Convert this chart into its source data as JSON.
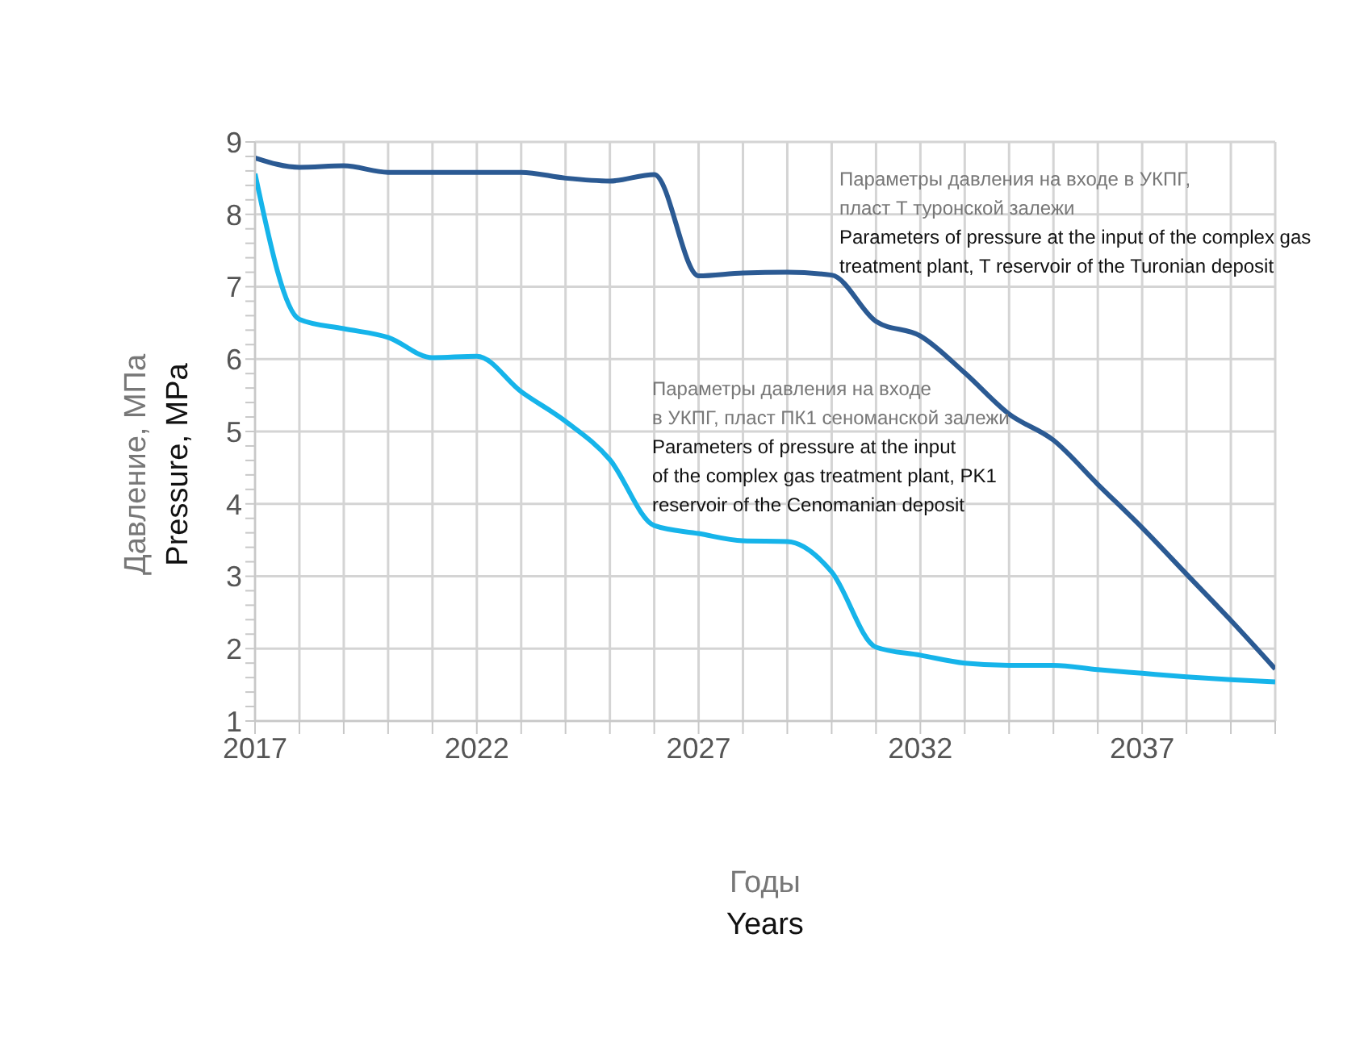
{
  "chart_data": {
    "type": "line",
    "xlabel": "Годы\nYears",
    "ylabel": "Давление, МПа\nPressure, МPa",
    "x": [
      2017,
      2018,
      2019,
      2020,
      2021,
      2022,
      2023,
      2024,
      2025,
      2026,
      2027,
      2028,
      2029,
      2030,
      2031,
      2032,
      2033,
      2034,
      2035,
      2036,
      2037,
      2038,
      2039,
      2040
    ],
    "series": [
      {
        "name": "Parameters of pressure at the input of the complex gas\ntreatment plant, T reservoir of the Turonian deposit",
        "color": "#2b5a93",
        "values": [
          8.78,
          8.65,
          8.67,
          8.58,
          8.58,
          8.58,
          8.58,
          8.5,
          8.46,
          8.55,
          7.15,
          7.19,
          7.2,
          7.16,
          6.52,
          6.32,
          5.81,
          5.24,
          4.88,
          4.27,
          3.67,
          3.03,
          2.39,
          1.72
        ]
      },
      {
        "name": "Parameters of pressure at the input\nof the complex gas treatment plant, PK1\nreservoir of the Cenomanian deposit",
        "color": "#16b4ea",
        "values": [
          8.56,
          6.55,
          6.42,
          6.3,
          6.02,
          6.04,
          5.55,
          5.14,
          4.61,
          3.7,
          3.59,
          3.49,
          3.48,
          3.06,
          2.02,
          1.91,
          1.8,
          1.77,
          1.77,
          1.71,
          1.66,
          1.61,
          1.57,
          1.54
        ]
      }
    ],
    "annotations": [
      "Параметры давления на входе в УКПГ,\nпласт Т туронской залежи",
      "Параметры давления на входе\nв УКПГ, пласт ПК1 сеноманской залежи"
    ],
    "xlim": [
      2017,
      2040
    ],
    "xticks": [
      2017,
      {
        "value": 2018,
        "label": null
      },
      {
        "value": 2019,
        "label": null
      },
      {
        "value": 2020,
        "label": null
      },
      {
        "value": 2021,
        "label": null
      },
      2022,
      {
        "value": 2023,
        "label": null
      },
      {
        "value": 2024,
        "label": null
      },
      {
        "value": 2025,
        "label": null
      },
      {
        "value": 2026,
        "label": null
      },
      2027,
      {
        "value": 2028,
        "label": null
      },
      {
        "value": 2029,
        "label": null
      },
      {
        "value": 2030,
        "label": null
      },
      {
        "value": 2031,
        "label": null
      },
      2032,
      {
        "value": 2033,
        "label": null
      },
      {
        "value": 2034,
        "label": null
      },
      {
        "value": 2035,
        "label": null
      },
      {
        "value": 2036,
        "label": null
      },
      2037,
      {
        "value": 2038,
        "label": null
      },
      {
        "value": 2039,
        "label": null
      },
      {
        "value": 2040,
        "label": null
      }
    ],
    "ylim": [
      1,
      9
    ],
    "yticks": [
      1,
      {
        "value": 1.2,
        "label": null
      },
      {
        "value": 1.4,
        "label": null
      },
      {
        "value": 1.6,
        "label": null
      },
      {
        "value": 1.8,
        "label": null
      },
      2,
      {
        "value": 2.2,
        "label": null
      },
      {
        "value": 2.4,
        "label": null
      },
      {
        "value": 2.6,
        "label": null
      },
      {
        "value": 2.8,
        "label": null
      },
      3,
      {
        "value": 3.2,
        "label": null
      },
      {
        "value": 3.4,
        "label": null
      },
      {
        "value": 3.6,
        "label": null
      },
      {
        "value": 3.8,
        "label": null
      },
      4,
      {
        "value": 4.2,
        "label": null
      },
      {
        "value": 4.4,
        "label": null
      },
      {
        "value": 4.6,
        "label": null
      },
      {
        "value": 4.8,
        "label": null
      },
      5,
      {
        "value": 5.2,
        "label": null
      },
      {
        "value": 5.4,
        "label": null
      },
      {
        "value": 5.6,
        "label": null
      },
      {
        "value": 5.8,
        "label": null
      },
      6,
      {
        "value": 6.2,
        "label": null
      },
      {
        "value": 6.4,
        "label": null
      },
      {
        "value": 6.6,
        "label": null
      },
      {
        "value": 6.8,
        "label": null
      },
      7,
      {
        "value": 7.2,
        "label": null
      },
      {
        "value": 7.4,
        "label": null
      },
      {
        "value": 7.6,
        "label": null
      },
      {
        "value": 7.8,
        "label": null
      },
      8,
      {
        "value": 8.2,
        "label": null
      },
      {
        "value": 8.4,
        "label": null
      },
      {
        "value": 8.6,
        "label": null
      },
      {
        "value": 8.8,
        "label": null
      },
      9
    ],
    "grid": true,
    "legend": false,
    "marker": "none",
    "line_style": "solid"
  }
}
